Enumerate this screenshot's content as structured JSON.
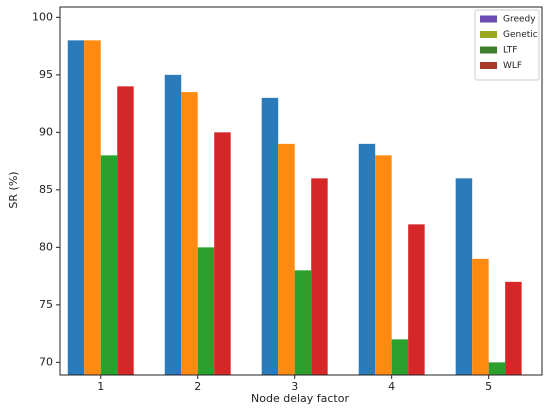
{
  "chart_data": {
    "type": "bar",
    "x_label": "Node delay factor",
    "y_label": "SR (%)",
    "x": [
      1,
      2,
      3,
      4,
      5
    ],
    "xlim": [
      0.58,
      5.55
    ],
    "xticks": [
      1,
      2,
      3,
      4,
      5
    ],
    "ylim": [
      68.9,
      100.9
    ],
    "yticks": [
      70,
      75,
      80,
      85,
      90,
      95,
      100
    ],
    "legend": "upper right",
    "series": [
      {
        "name": "Greedy",
        "color": "#2b7bba",
        "legend_color": "#6a4bb0",
        "values": [
          98,
          95,
          93,
          89,
          86
        ]
      },
      {
        "name": "Genetic",
        "color": "#ff8a12",
        "legend_color": "#9aa81f",
        "values": [
          98,
          93.5,
          89,
          88,
          79
        ]
      },
      {
        "name": "LTF",
        "color": "#2ca02c",
        "legend_color": "#3e7d2a",
        "values": [
          88,
          80,
          78,
          72,
          70
        ]
      },
      {
        "name": "WLF",
        "color": "#d62728",
        "legend_color": "#a83a2a",
        "values": [
          94,
          90,
          86,
          82,
          77
        ]
      }
    ]
  }
}
